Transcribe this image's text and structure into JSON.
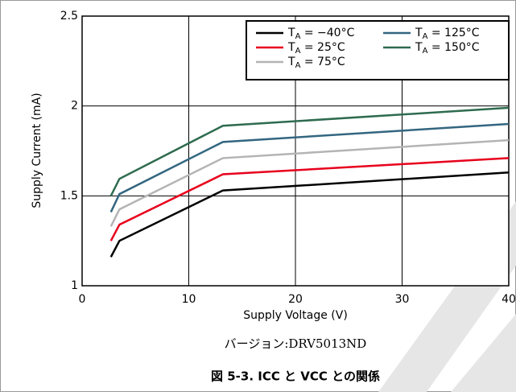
{
  "chart_data": {
    "type": "line",
    "xlabel": "Supply Voltage (V)",
    "ylabel": "Supply Current (mA)",
    "subtitle": "バージョン:DRV5013ND",
    "title": "図 5-3. ICC と VCC との関係",
    "x": [
      2.7,
      3.5,
      13.2,
      40
    ],
    "series": [
      {
        "name": "TA = −40°C",
        "color": "#000000",
        "values": [
          1.16,
          1.25,
          1.53,
          1.63
        ]
      },
      {
        "name": "TA = 25°C",
        "color": "#e8001c",
        "values": [
          1.25,
          1.34,
          1.62,
          1.71
        ]
      },
      {
        "name": "TA = 75°C",
        "color": "#b4b4b4",
        "values": [
          1.33,
          1.425,
          1.71,
          1.81
        ]
      },
      {
        "name": "TA = 125°C",
        "color": "#336680",
        "values": [
          1.41,
          1.51,
          1.8,
          1.9
        ]
      },
      {
        "name": "TA = 150°C",
        "color": "#2e6b4f",
        "values": [
          1.5,
          1.595,
          1.89,
          1.99
        ]
      }
    ],
    "xlim": [
      0,
      40
    ],
    "xticks": [
      0,
      10,
      20,
      30,
      40
    ],
    "ylim": [
      1,
      2.5
    ],
    "yticks": [
      1,
      1.5,
      2,
      2.5
    ],
    "grid": true,
    "legend": "upper right"
  }
}
